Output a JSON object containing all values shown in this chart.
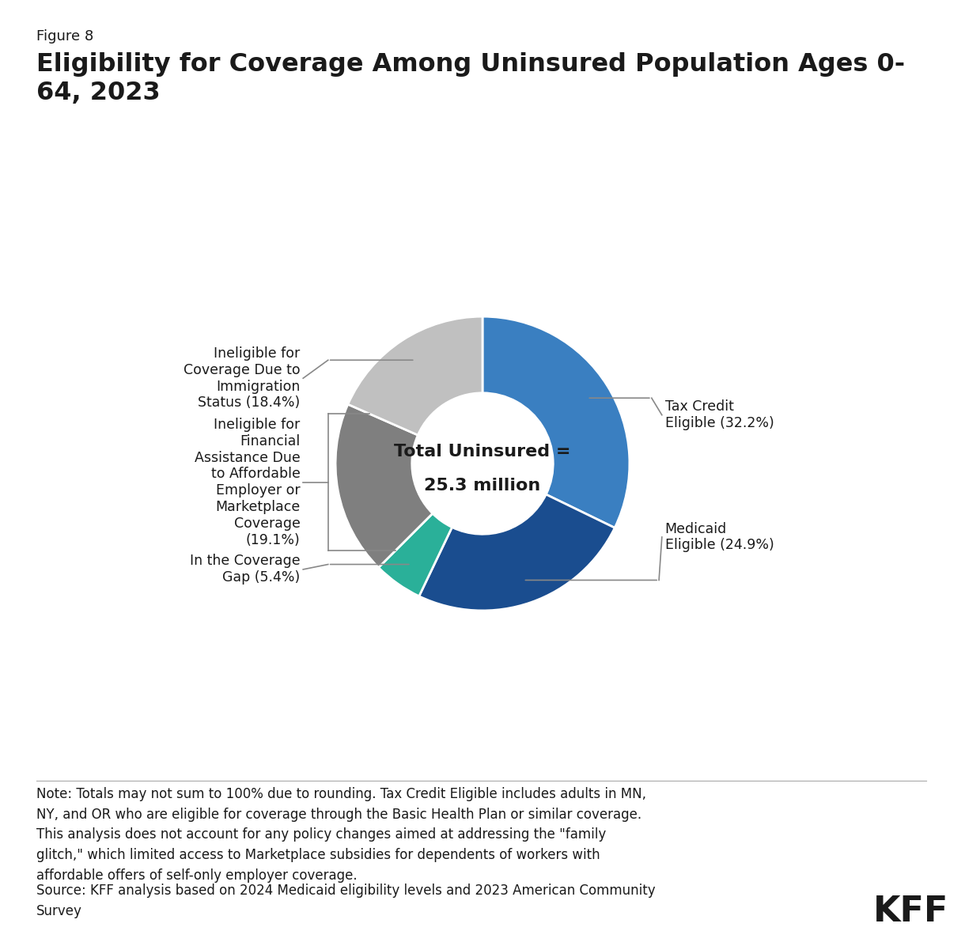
{
  "figure_label": "Figure 8",
  "title": "Eligibility for Coverage Among Uninsured Population Ages 0-\n64, 2023",
  "center_text_line1": "Total Uninsured =",
  "center_text_line2": "25.3 million",
  "slices": [
    {
      "label": "Tax Credit\nEligible (32.2%)",
      "value": 32.2,
      "color": "#3a7fc1"
    },
    {
      "label": "Medicaid\nEligible (24.9%)",
      "value": 24.9,
      "color": "#1a4d8f"
    },
    {
      "label": "In the Coverage\nGap (5.4%)",
      "value": 5.4,
      "color": "#2ab099"
    },
    {
      "label": "Ineligible for\nFinancial\nAssistance Due\nto Affordable\nEmployer or\nMarketplace\nCoverage\n(19.1%)",
      "value": 19.1,
      "color": "#7f7f7f"
    },
    {
      "label": "Ineligible for\nCoverage Due to\nImmigration\nStatus (18.4%)",
      "value": 18.4,
      "color": "#c0c0c0"
    }
  ],
  "note_text": "Note: Totals may not sum to 100% due to rounding. Tax Credit Eligible includes adults in MN,\nNY, and OR who are eligible for coverage through the Basic Health Plan or similar coverage.\nThis analysis does not account for any policy changes aimed at addressing the \"family\nglitch,\" which limited access to Marketplace subsidies for dependents of workers with\naffordable offers of self-only employer coverage.",
  "source_text": "Source: KFF analysis based on 2024 Medicaid eligibility levels and 2023 American Community\nSurvey",
  "background_color": "#ffffff",
  "text_color": "#1a1a1a",
  "kff_label": "KFF"
}
